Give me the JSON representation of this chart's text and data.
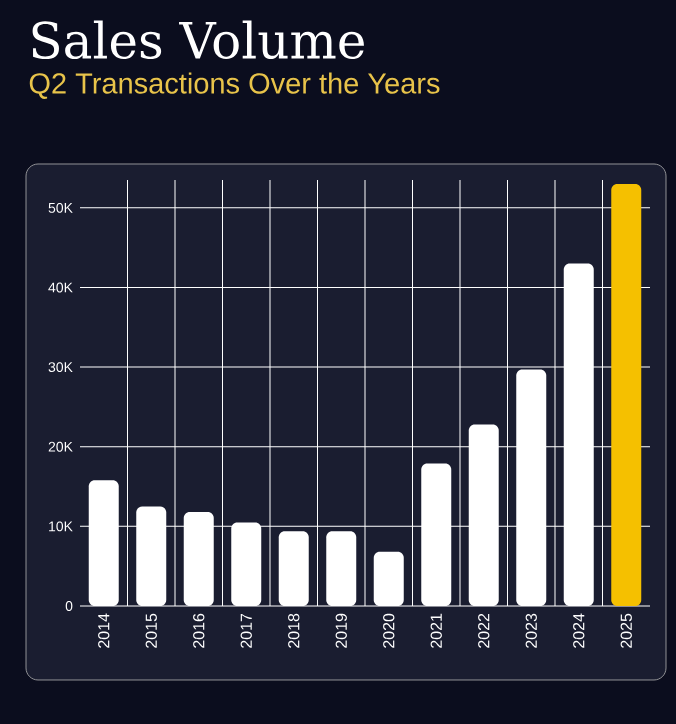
{
  "chart_data": {
    "type": "bar",
    "title": "Sales Volume",
    "subtitle": "Q2 Transactions Over the Years",
    "categories": [
      "2014",
      "2015",
      "2016",
      "2017",
      "2018",
      "2019",
      "2020",
      "2021",
      "2022",
      "2023",
      "2024",
      "2025"
    ],
    "values": [
      15800,
      12500,
      11800,
      10500,
      9400,
      9400,
      6800,
      17900,
      22800,
      29700,
      43000,
      53000
    ],
    "colors": [
      "#ffffff",
      "#ffffff",
      "#ffffff",
      "#ffffff",
      "#ffffff",
      "#ffffff",
      "#ffffff",
      "#ffffff",
      "#ffffff",
      "#ffffff",
      "#ffffff",
      "#f5c000"
    ],
    "ylim": [
      0,
      53500
    ],
    "yticks": [
      {
        "value": 0,
        "label": "0"
      },
      {
        "value": 10000,
        "label": "10K"
      },
      {
        "value": 20000,
        "label": "20K"
      },
      {
        "value": 30000,
        "label": "30K"
      },
      {
        "value": 40000,
        "label": "40K"
      },
      {
        "value": 50000,
        "label": "50K"
      }
    ],
    "grid": true
  }
}
